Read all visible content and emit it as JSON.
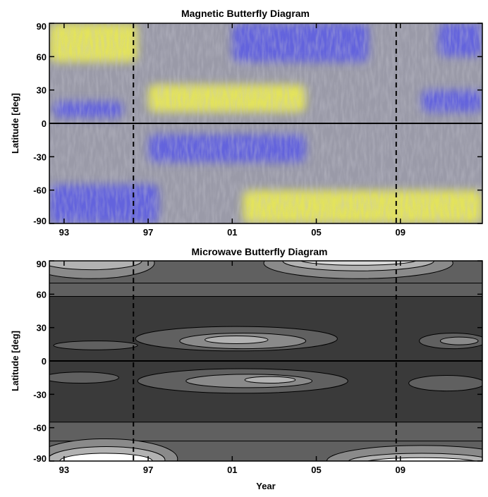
{
  "chart_data": [
    {
      "type": "heatmap",
      "title": "Magnetic Butterfly Diagram",
      "xlabel": "",
      "ylabel": "Latitude [deg]",
      "xlim": [
        1992.3,
        2012.9
      ],
      "ylim": [
        -90,
        90
      ],
      "x_ticks": [
        1993,
        1997,
        2001,
        2005,
        2009
      ],
      "x_tick_labels": [
        "93",
        "97",
        "01",
        "05",
        "09"
      ],
      "y_ticks": [
        90,
        60,
        30,
        0,
        -30,
        -60,
        -90
      ],
      "y_tick_labels": [
        "90",
        "60",
        "30",
        "0",
        "-30",
        "-60",
        "-90"
      ],
      "vlines": [
        1996.3,
        2008.8
      ],
      "hline": 0,
      "colors": {
        "positive": "#f0f050",
        "negative": "#5a5ae6",
        "neutral": "#9a9aa8"
      },
      "regions": [
        {
          "polarity": "positive",
          "x": [
            1992.3,
            1996.5
          ],
          "lat": [
            55,
            90
          ]
        },
        {
          "polarity": "negative",
          "x": [
            1992.3,
            1997.5
          ],
          "lat": [
            -90,
            -55
          ]
        },
        {
          "polarity": "negative",
          "x": [
            2001.0,
            2007.5
          ],
          "lat": [
            55,
            90
          ]
        },
        {
          "polarity": "positive",
          "x": [
            2001.5,
            2012.9
          ],
          "lat": [
            -90,
            -60
          ]
        },
        {
          "polarity": "positive",
          "x": [
            1997.0,
            2004.5
          ],
          "lat": [
            10,
            35
          ]
        },
        {
          "polarity": "negative",
          "x": [
            1997.0,
            2004.5
          ],
          "lat": [
            -35,
            -10
          ]
        },
        {
          "polarity": "negative",
          "x": [
            1992.5,
            1995.8
          ],
          "lat": [
            5,
            20
          ]
        },
        {
          "polarity": "negative",
          "x": [
            2010.0,
            2012.9
          ],
          "lat": [
            10,
            30
          ]
        },
        {
          "polarity": "negative",
          "x": [
            2010.8,
            2012.9
          ],
          "lat": [
            60,
            90
          ]
        }
      ]
    },
    {
      "type": "heatmap",
      "title": "Microwave Butterfly Diagram",
      "xlabel": "Year",
      "ylabel": "Latitude [deg]",
      "xlim": [
        1992.3,
        2012.9
      ],
      "ylim": [
        -90,
        90
      ],
      "x_ticks": [
        1993,
        1997,
        2001,
        2005,
        2009
      ],
      "x_tick_labels": [
        "93",
        "97",
        "01",
        "05",
        "09"
      ],
      "y_ticks": [
        90,
        60,
        30,
        0,
        -30,
        -60,
        -90
      ],
      "y_tick_labels": [
        "90",
        "60",
        "30",
        "0",
        "-30",
        "-60",
        "-90"
      ],
      "vlines": [
        1996.3,
        2008.8
      ],
      "hline": 0,
      "levels": [
        "#3a3a3a",
        "#606060",
        "#8a8a8a",
        "#b2b2b2",
        "#d8d8d8",
        "#ffffff"
      ]
    }
  ]
}
